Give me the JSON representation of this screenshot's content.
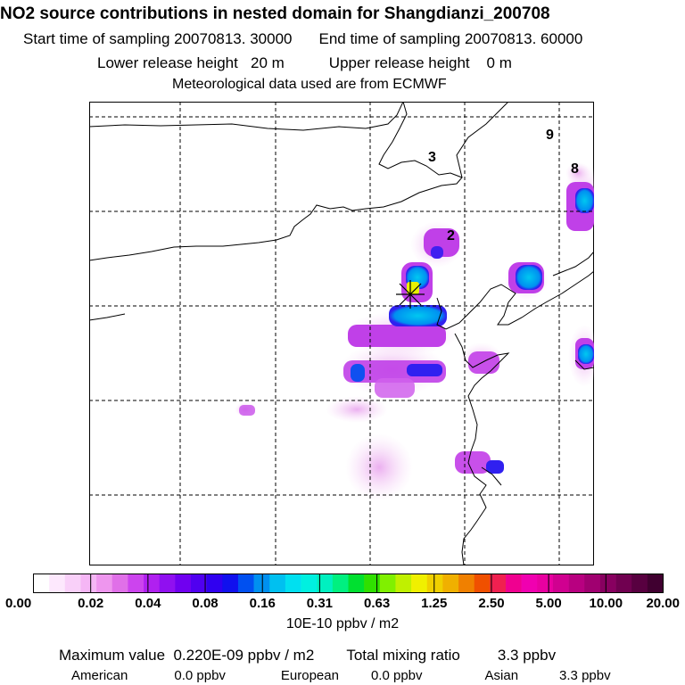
{
  "header": {
    "title": "NO2 source contributions in nested domain for Shangdianzi_200708",
    "start_label": "Start time of sampling 20070813. 30000",
    "end_label": "End time of sampling 20070813. 60000",
    "lower_label": "Lower release height   20 m",
    "upper_label": "Upper release height    0 m",
    "met_label": "Meteorological data used are from ECMWF"
  },
  "map": {
    "region_labels": [
      "9",
      "8",
      "3",
      "2"
    ],
    "station_marker": "Shangdianzi receptor"
  },
  "colorbar": {
    "unit_label": "10E-10 ppbv / m2",
    "tick_labels": [
      "0.00",
      "0.02",
      "0.04",
      "0.08",
      "0.16",
      "0.31",
      "0.63",
      "1.25",
      "2.50",
      "5.00",
      "10.00",
      "20.00"
    ],
    "colors": [
      "#ffffff",
      "#fde8fd",
      "#f9d0f9",
      "#f5b6f5",
      "#ee96ee",
      "#e070e8",
      "#cc44ee",
      "#b020f0",
      "#9010f0",
      "#7000f0",
      "#5000f0",
      "#3000f0",
      "#1010ee",
      "#0050f0",
      "#0090f0",
      "#00c0f0",
      "#00e0f0",
      "#00f0e0",
      "#00f0c0",
      "#00f080",
      "#00e030",
      "#30e000",
      "#80f000",
      "#c0f000",
      "#f0f000",
      "#f0d000",
      "#f0b000",
      "#f08000",
      "#f05000",
      "#f02050",
      "#f00090",
      "#f000b0",
      "#e800a0",
      "#d00090",
      "#b80080",
      "#a00070",
      "#880060",
      "#700050",
      "#580040",
      "#400030"
    ]
  },
  "stats": {
    "max_label": "Maximum value  0.220E-09 ppbv / m2",
    "total_label": "Total mixing ratio",
    "total_value": "3.3 ppbv",
    "american_label": "American",
    "american_value": "0.0 ppbv",
    "european_label": "European",
    "european_value": "0.0 ppbv",
    "asian_label": "Asian",
    "asian_value": "3.3 ppbv"
  }
}
